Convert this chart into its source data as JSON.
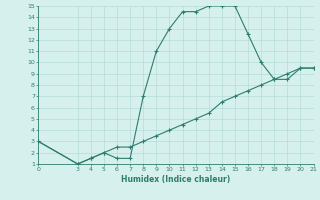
{
  "xlabel": "Humidex (Indice chaleur)",
  "xlim": [
    0,
    21
  ],
  "ylim": [
    1,
    15
  ],
  "xticks": [
    0,
    3,
    4,
    5,
    6,
    7,
    8,
    9,
    10,
    11,
    12,
    13,
    14,
    15,
    16,
    17,
    18,
    19,
    20,
    21
  ],
  "yticks": [
    1,
    2,
    3,
    4,
    5,
    6,
    7,
    8,
    9,
    10,
    11,
    12,
    13,
    14,
    15
  ],
  "line_color": "#2e7d6e",
  "bg_color": "#d6f0ee",
  "grid_color": "#b0d8d4",
  "curve1_x": [
    0,
    3,
    4,
    5,
    6,
    7,
    8,
    9,
    10,
    11,
    12,
    13,
    14,
    15,
    16,
    17,
    18,
    19,
    20,
    21
  ],
  "curve1_y": [
    3,
    1,
    1.5,
    2,
    1.5,
    1.5,
    7,
    11,
    13,
    14.5,
    14.5,
    15,
    15,
    15,
    12.5,
    10,
    8.5,
    8.5,
    9.5,
    9.5
  ],
  "curve2_x": [
    0,
    3,
    4,
    5,
    6,
    7,
    8,
    9,
    10,
    11,
    12,
    13,
    14,
    15,
    16,
    17,
    18,
    19,
    20,
    21
  ],
  "curve2_y": [
    3,
    1,
    1.5,
    2,
    2.5,
    2.5,
    3,
    3.5,
    4,
    4.5,
    5,
    5.5,
    6.5,
    7,
    7.5,
    8,
    8.5,
    9,
    9.5,
    9.5
  ]
}
